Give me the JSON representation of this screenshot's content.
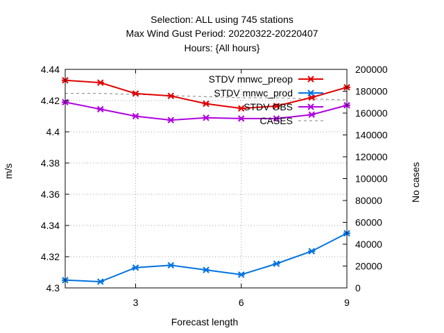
{
  "titles": {
    "line1": "Selection: ALL using   745 stations",
    "line2": "Max Wind Gust   Period: 20220322-20220407",
    "line3": "Hours: {All hours}"
  },
  "chart_data": {
    "type": "line",
    "title": "Selection: ALL using   745 stations / Max Wind Gust   Period: 20220322-20220407 / Hours: {All hours}",
    "xlabel": "Forecast length",
    "ylabel": "m/s",
    "y2label": "No cases",
    "xlim": [
      1,
      9
    ],
    "ylim": [
      4.3,
      4.44
    ],
    "y2lim": [
      0,
      200000
    ],
    "x_ticks": [
      3,
      6,
      9
    ],
    "y_ticks": [
      "4.3",
      "4.32",
      "4.34",
      "4.36",
      "4.38",
      "4.4",
      "4.42",
      "4.44"
    ],
    "y2_ticks": [
      "0",
      "20000",
      "40000",
      "60000",
      "80000",
      "100000",
      "120000",
      "140000",
      "160000",
      "180000",
      "200000"
    ],
    "grid": true,
    "legend_position": "top-right",
    "x": [
      1,
      2,
      3,
      4,
      5,
      6,
      7,
      8,
      9
    ],
    "series": [
      {
        "name": "STDV mnwc_preop",
        "color": "#e00000",
        "axis": "left",
        "marker": "x",
        "values": [
          4.433,
          4.4315,
          4.4245,
          4.423,
          4.418,
          4.415,
          4.4165,
          4.422,
          4.4285
        ]
      },
      {
        "name": "STDV mnwc_prod",
        "color": "#0072e0",
        "axis": "left",
        "marker": "x",
        "values": [
          4.305,
          4.304,
          4.313,
          4.3145,
          4.3115,
          4.3085,
          4.3155,
          4.3235,
          4.335
        ]
      },
      {
        "name": "STDV OBS",
        "color": "#b000e0",
        "axis": "left",
        "marker": "x",
        "values": [
          4.419,
          4.4145,
          4.41,
          4.4075,
          4.409,
          4.4085,
          4.4085,
          4.411,
          4.417
        ]
      },
      {
        "name": "CASES",
        "color": "#808080",
        "axis": "right",
        "marker": "none",
        "dashed": true,
        "values": [
          178000,
          178000,
          177000,
          176000,
          175000,
          174000,
          174000,
          173000,
          172000
        ]
      }
    ]
  }
}
